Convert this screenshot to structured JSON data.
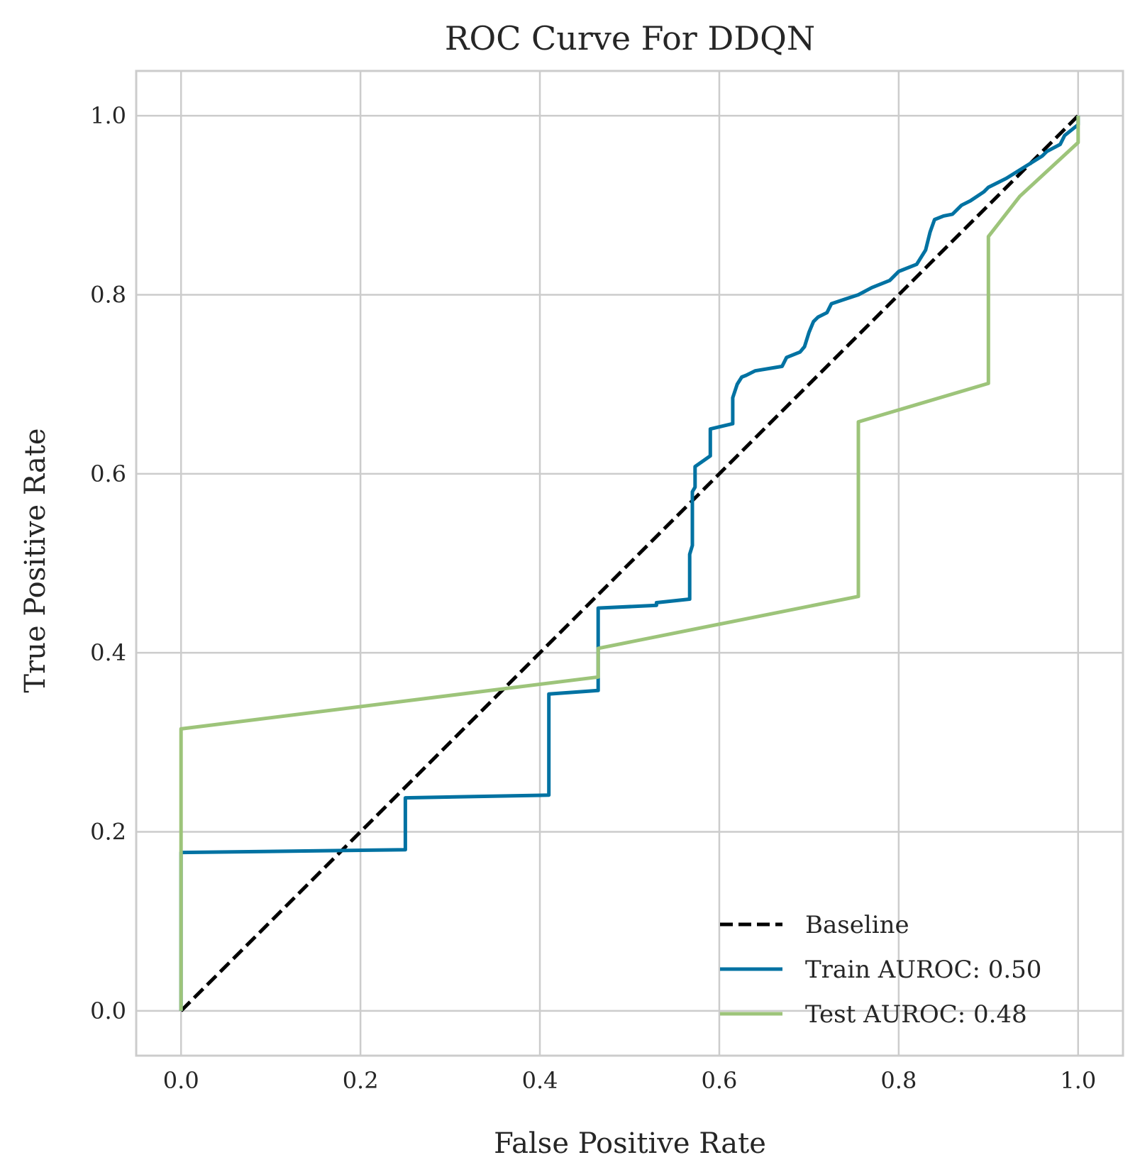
{
  "chart_data": {
    "type": "line",
    "title": "ROC Curve For DDQN",
    "xlabel": "False Positive Rate",
    "ylabel": "True Positive Rate",
    "xlim": [
      -0.05,
      1.05
    ],
    "ylim": [
      -0.05,
      1.05
    ],
    "xticks": [
      0.0,
      0.2,
      0.4,
      0.6,
      0.8,
      1.0
    ],
    "yticks": [
      0.0,
      0.2,
      0.4,
      0.6,
      0.8,
      1.0
    ],
    "xtick_labels": [
      "0.0",
      "0.2",
      "0.4",
      "0.6",
      "0.8",
      "1.0"
    ],
    "ytick_labels": [
      "0.0",
      "0.2",
      "0.4",
      "0.6",
      "0.8",
      "1.0"
    ],
    "grid": true,
    "legend_position": "lower-right",
    "series": [
      {
        "name": "Baseline",
        "color": "#000000",
        "dashed": true,
        "x": [
          0,
          1
        ],
        "y": [
          0,
          1
        ]
      },
      {
        "name": "Train AUROC: 0.50",
        "color": "#0072a2",
        "dashed": false,
        "x": [
          0,
          0,
          0.25,
          0.25,
          0.41,
          0.41,
          0.465,
          0.465,
          0.53,
          0.53,
          0.567,
          0.567,
          0.57,
          0.57,
          0.573,
          0.573,
          0.59,
          0.59,
          0.615,
          0.615,
          0.62,
          0.625,
          0.63,
          0.64,
          0.67,
          0.675,
          0.69,
          0.695,
          0.7,
          0.705,
          0.71,
          0.72,
          0.725,
          0.74,
          0.755,
          0.77,
          0.79,
          0.8,
          0.82,
          0.83,
          0.835,
          0.84,
          0.85,
          0.86,
          0.87,
          0.88,
          0.895,
          0.9,
          0.92,
          0.96,
          0.965,
          0.98,
          0.985,
          1.0,
          1.0
        ],
        "y": [
          0,
          0.177,
          0.18,
          0.238,
          0.241,
          0.354,
          0.358,
          0.45,
          0.453,
          0.456,
          0.46,
          0.51,
          0.52,
          0.58,
          0.585,
          0.608,
          0.62,
          0.65,
          0.656,
          0.685,
          0.7,
          0.708,
          0.71,
          0.715,
          0.72,
          0.73,
          0.736,
          0.742,
          0.758,
          0.77,
          0.775,
          0.78,
          0.79,
          0.795,
          0.8,
          0.808,
          0.816,
          0.826,
          0.834,
          0.85,
          0.87,
          0.884,
          0.888,
          0.89,
          0.9,
          0.905,
          0.915,
          0.92,
          0.93,
          0.955,
          0.96,
          0.968,
          0.978,
          0.99,
          1.0
        ]
      },
      {
        "name": "Test AUROC: 0.48",
        "color": "#9dc47a",
        "dashed": false,
        "x": [
          0,
          0,
          0.465,
          0.465,
          0.755,
          0.755,
          0.9,
          0.9,
          0.935,
          1.0,
          1.0
        ],
        "y": [
          0,
          0.315,
          0.373,
          0.405,
          0.463,
          0.658,
          0.701,
          0.865,
          0.91,
          0.97,
          1.0
        ]
      }
    ]
  }
}
